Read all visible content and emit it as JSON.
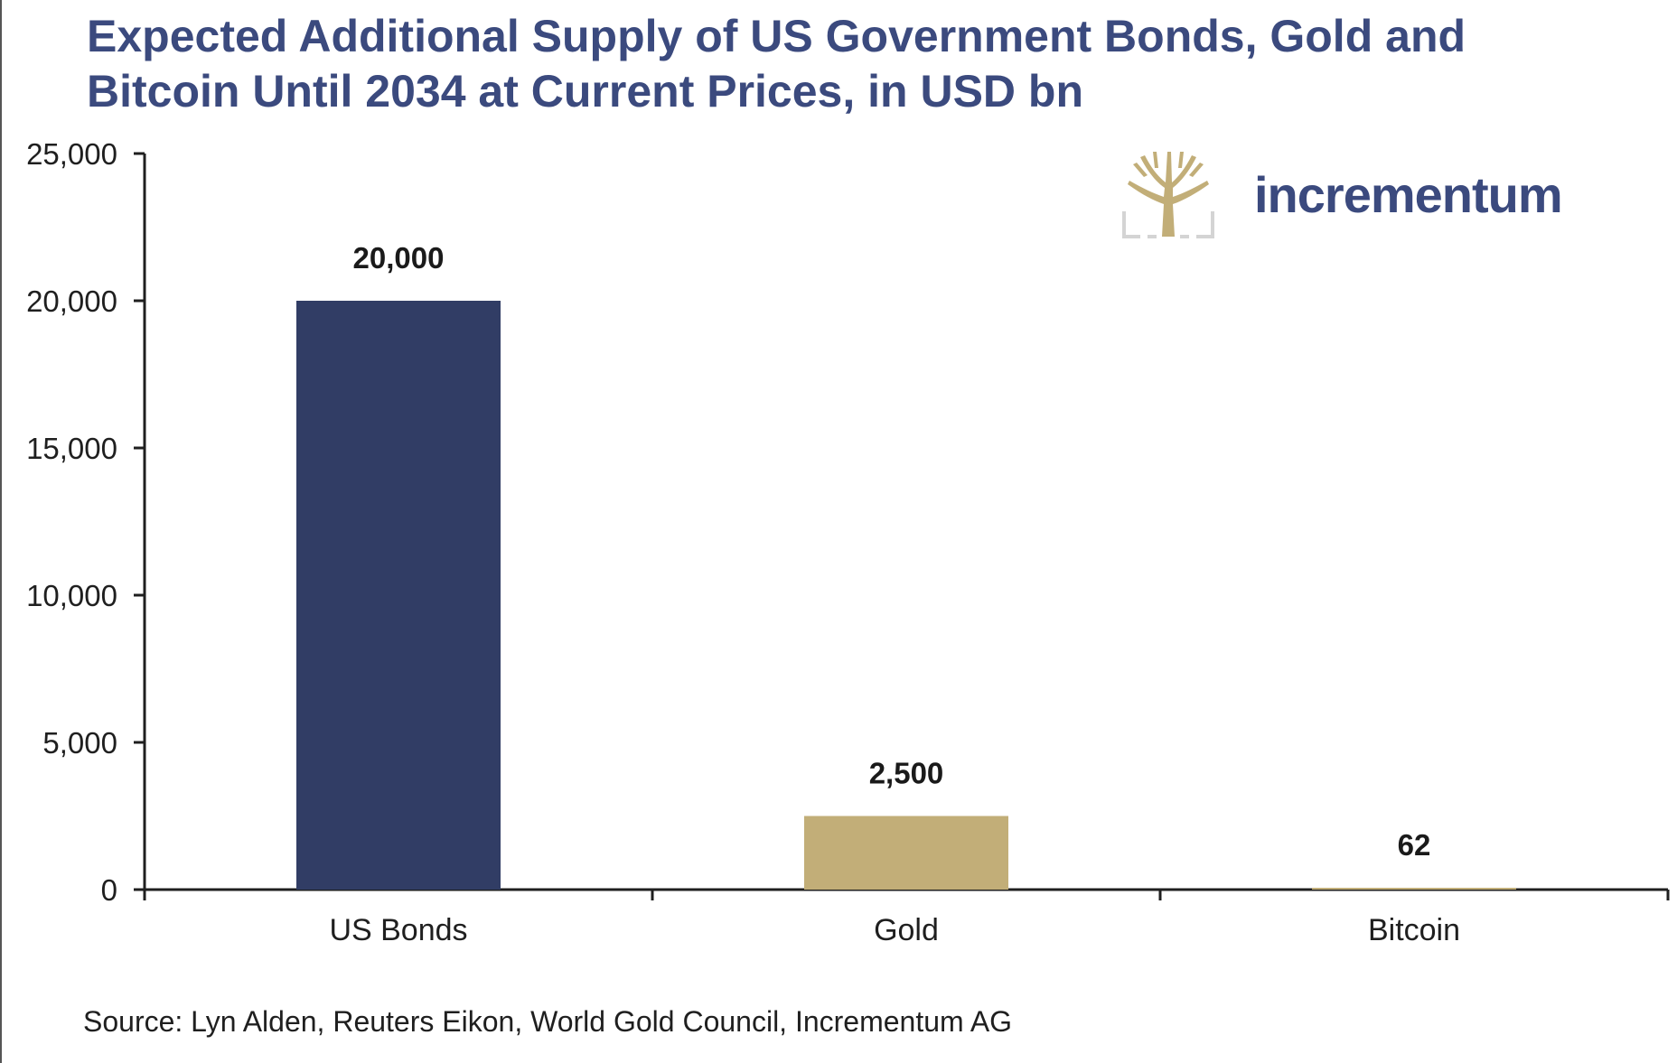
{
  "chart_data": {
    "type": "bar",
    "title": "Expected Additional Supply of US Government Bonds, Gold and Bitcoin Until 2034 at Current Prices, in USD bn",
    "title_lines": [
      "Expected Additional Supply of US Government Bonds, Gold and",
      "Bitcoin Until 2034 at Current Prices, in USD bn"
    ],
    "categories": [
      "US Bonds",
      "Gold",
      "Bitcoin"
    ],
    "values": [
      20000,
      2500,
      62
    ],
    "data_labels": [
      "20,000",
      "2,500",
      "62"
    ],
    "bar_colors": [
      "#313d65",
      "#c2ae78",
      "#c2ae78"
    ],
    "ylim": [
      0,
      25000
    ],
    "yticks": [
      0,
      5000,
      10000,
      15000,
      20000,
      25000
    ],
    "ytick_labels": [
      "0",
      "5,000",
      "10,000",
      "15,000",
      "20,000",
      "25,000"
    ],
    "xlabel": "",
    "ylabel": "",
    "grid": false,
    "legend": "none"
  },
  "logo": {
    "text": "incrementum",
    "icon": "tree-icon",
    "mark_color": "#c2ae78",
    "frame_color": "#d4d4d4"
  },
  "source": "Source: Lyn Alden, Reuters Eikon, World Gold Council, Incrementum AG",
  "colors": {
    "title": "#3b4a7e",
    "axis": "#1f1f1f",
    "text": "#1f1f1f"
  }
}
